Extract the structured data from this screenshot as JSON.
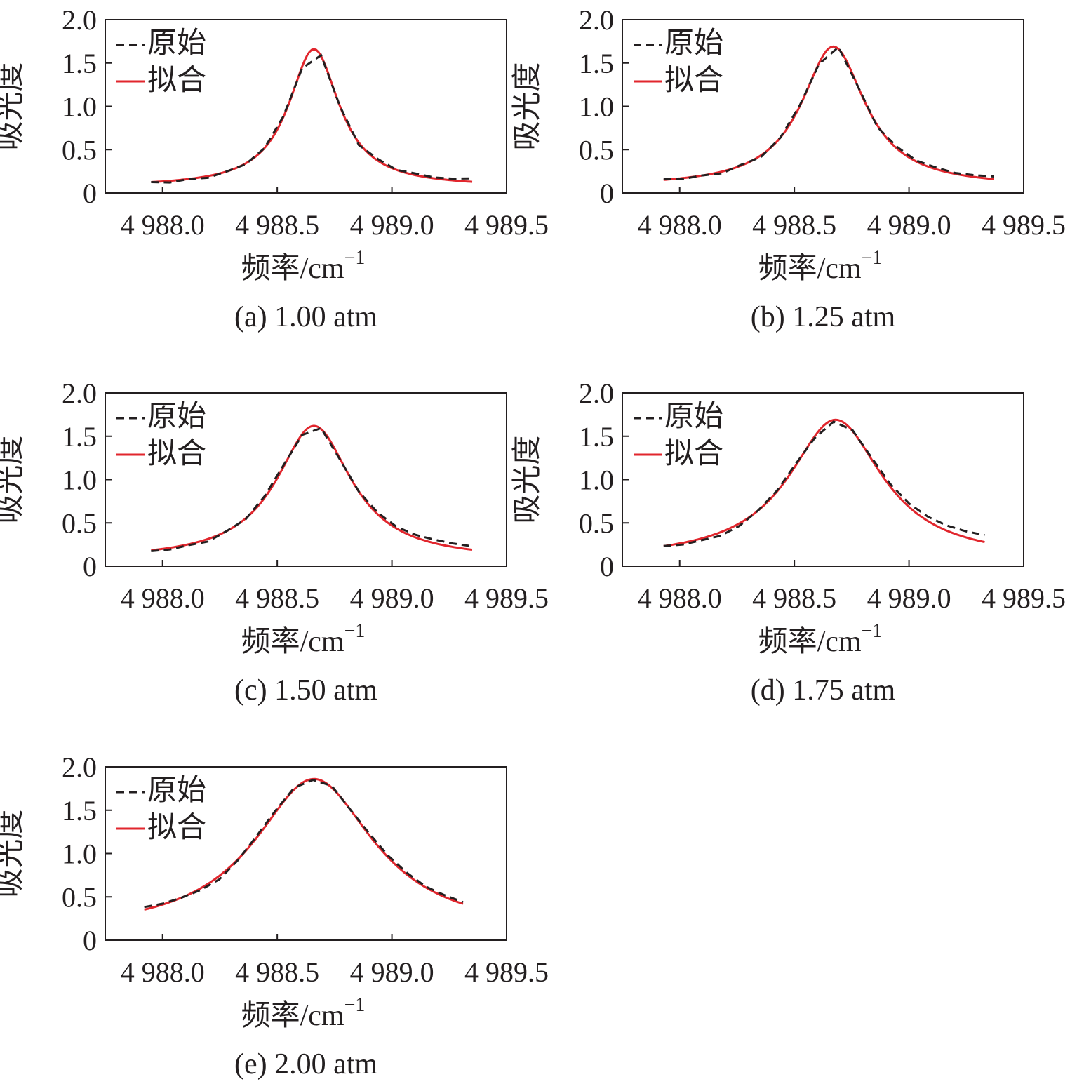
{
  "figure": {
    "ylabel": "吸光度",
    "xlabel_base": "频率/cm",
    "xlabel_sup": "−1",
    "legend": {
      "raw": "原始",
      "fit": "拟合"
    },
    "xticks": [
      "4 988.0",
      "4 988.5",
      "4 989.0",
      "4 989.5"
    ],
    "yticks": [
      "0",
      "0.5",
      "1.0",
      "1.5",
      "2.0"
    ],
    "colors": {
      "raw": "#231f20",
      "fit": "#e1262d",
      "axis": "#231f20"
    }
  },
  "chart_data": [
    {
      "type": "line",
      "caption": "(a) 1.00 atm",
      "xlabel": "频率/cm−1",
      "ylabel": "吸光度",
      "xlim": [
        4987.75,
        4989.5
      ],
      "ylim": [
        0,
        2.0
      ],
      "grid": false,
      "legend_position": "top-left",
      "center": 4988.66,
      "peak": 1.66,
      "hwhm": 0.135,
      "offset": 0.07,
      "raw_offset": [
        0,
        -0.02,
        0,
        -0.02,
        0,
        -0.01,
        0,
        0.01,
        -0.02,
        0.01,
        0,
        -0.03,
        0.02,
        0,
        0.02,
        0.01,
        0.02,
        0.04
      ],
      "x_range": [
        4987.95,
        4989.35
      ],
      "series": [
        {
          "name": "原始",
          "style": "dashed"
        },
        {
          "name": "拟合",
          "style": "solid"
        }
      ]
    },
    {
      "type": "line",
      "caption": "(b) 1.25 atm",
      "xlabel": "频率/cm−1",
      "ylabel": "吸光度",
      "xlim": [
        4987.75,
        4989.5
      ],
      "ylim": [
        0,
        2.0
      ],
      "grid": false,
      "legend_position": "top-left",
      "center": 4988.67,
      "peak": 1.69,
      "hwhm": 0.17,
      "offset": 0.07,
      "raw_offset": [
        0.01,
        -0.01,
        0,
        -0.02,
        0.01,
        -0.02,
        0,
        0.01,
        -0.01,
        0.02,
        0,
        -0.02,
        0.02,
        0.01,
        0.02,
        0.01,
        0.02,
        0.03
      ],
      "x_range": [
        4987.93,
        4989.37
      ],
      "series": [
        {
          "name": "原始",
          "style": "dashed"
        },
        {
          "name": "拟合",
          "style": "solid"
        }
      ]
    },
    {
      "type": "line",
      "caption": "(c) 1.50 atm",
      "xlabel": "频率/cm−1",
      "ylabel": "吸光度",
      "xlim": [
        4987.75,
        4989.5
      ],
      "ylim": [
        0,
        2.0
      ],
      "grid": false,
      "legend_position": "top-left",
      "center": 4988.66,
      "peak": 1.62,
      "hwhm": 0.2,
      "offset": 0.07,
      "raw_offset": [
        -0.01,
        -0.02,
        -0.01,
        -0.03,
        0,
        -0.01,
        0.02,
        0.02,
        -0.01,
        0.01,
        -0.01,
        0,
        0.02,
        0.02,
        0.03,
        0.04,
        0.04,
        0.04
      ],
      "x_range": [
        4987.95,
        4989.35
      ],
      "series": [
        {
          "name": "原始",
          "style": "dashed"
        },
        {
          "name": "拟合",
          "style": "solid"
        }
      ]
    },
    {
      "type": "line",
      "caption": "(d) 1.75 atm",
      "xlabel": "频率/cm−1",
      "ylabel": "吸光度",
      "xlim": [
        4987.75,
        4989.5
      ],
      "ylim": [
        0,
        2.0
      ],
      "grid": false,
      "legend_position": "top-left",
      "center": 4988.68,
      "peak": 1.69,
      "hwhm": 0.25,
      "offset": 0.07,
      "raw_offset": [
        0,
        -0.02,
        -0.02,
        -0.04,
        -0.03,
        0,
        0.01,
        0.02,
        -0.02,
        -0.02,
        0.01,
        0.02,
        0.03,
        0.04,
        0.05,
        0.06,
        0.07,
        0.08
      ],
      "x_range": [
        4987.93,
        4989.33
      ],
      "series": [
        {
          "name": "原始",
          "style": "dashed"
        },
        {
          "name": "拟合",
          "style": "solid"
        }
      ]
    },
    {
      "type": "line",
      "caption": "(e) 2.00 atm",
      "xlabel": "频率/cm−1",
      "ylabel": "吸光度",
      "xlim": [
        4987.75,
        4989.5
      ],
      "ylim": [
        0,
        2.0
      ],
      "grid": false,
      "legend_position": "top-left",
      "center": 4988.66,
      "peak": 1.86,
      "hwhm": 0.32,
      "offset": 0.07,
      "raw_offset": [
        0.03,
        0.01,
        0,
        -0.02,
        -0.04,
        -0.01,
        0.02,
        0.02,
        0.02,
        -0.01,
        0.02,
        0,
        0.02,
        0.02,
        0.02,
        0.01,
        0.02,
        0.02
      ],
      "x_range": [
        4987.92,
        4989.31
      ],
      "series": [
        {
          "name": "原始",
          "style": "dashed"
        },
        {
          "name": "拟合",
          "style": "solid"
        }
      ]
    }
  ]
}
